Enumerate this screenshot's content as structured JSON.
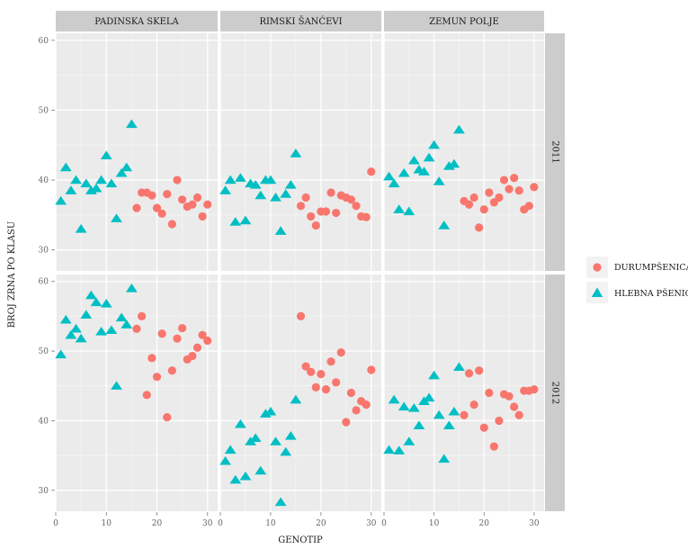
{
  "chart_data": {
    "type": "scatter",
    "facet_cols": [
      "PADINSKA SKELA",
      "RIMSKI ŠANĆEVI",
      "ZEMUN POLJE"
    ],
    "facet_rows": [
      "2011",
      "2012"
    ],
    "xlabel": "GENOTIP",
    "ylabel": "BROJ ZRNA PO KLASU",
    "xlim": [
      0,
      32
    ],
    "ylim": [
      27,
      61
    ],
    "xticks": [
      0,
      10,
      20,
      30
    ],
    "yticks": [
      30,
      40,
      50,
      60
    ],
    "grid": true,
    "legend_position": "right",
    "series": [
      {
        "name": "DURUMPŠENICA",
        "shape": "circle",
        "color": "#F8766D"
      },
      {
        "name": "HLEBNA PŠENICA",
        "shape": "triangle",
        "color": "#00BFC4"
      }
    ],
    "panels": [
      {
        "col": "PADINSKA SKELA",
        "row": "2011",
        "HLEBNA PŠENICA": [
          [
            1,
            37
          ],
          [
            2,
            41.8
          ],
          [
            3,
            38.5
          ],
          [
            4,
            40
          ],
          [
            5,
            33
          ],
          [
            6,
            39.5
          ],
          [
            7,
            38.5
          ],
          [
            8,
            38.8
          ],
          [
            9,
            40
          ],
          [
            10,
            43.5
          ],
          [
            11,
            39.5
          ],
          [
            12,
            34.5
          ],
          [
            13,
            41
          ],
          [
            14,
            41.8
          ],
          [
            15,
            48
          ]
        ],
        "DURUMPŠENICA": [
          [
            16,
            36
          ],
          [
            17,
            38.2
          ],
          [
            18,
            38.2
          ],
          [
            19,
            37.8
          ],
          [
            20,
            36
          ],
          [
            21,
            35.2
          ],
          [
            22,
            38
          ],
          [
            23,
            33.7
          ],
          [
            24,
            40
          ],
          [
            25,
            37.2
          ],
          [
            26,
            36.2
          ],
          [
            27,
            36.5
          ],
          [
            28,
            37.5
          ],
          [
            29,
            34.8
          ],
          [
            30,
            36.5
          ]
        ]
      },
      {
        "col": "RIMSKI ŠANĆEVI",
        "row": "2011",
        "HLEBNA PŠENICA": [
          [
            1,
            38.5
          ],
          [
            2,
            40
          ],
          [
            3,
            34
          ],
          [
            4,
            40.3
          ],
          [
            5,
            34.2
          ],
          [
            6,
            39.5
          ],
          [
            7,
            39.3
          ],
          [
            8,
            37.8
          ],
          [
            9,
            40
          ],
          [
            10,
            40
          ],
          [
            11,
            37.5
          ],
          [
            12,
            32.7
          ],
          [
            13,
            38
          ],
          [
            14,
            39.3
          ],
          [
            15,
            43.8
          ]
        ],
        "DURUMPŠENICA": [
          [
            16,
            36.3
          ],
          [
            17,
            37.5
          ],
          [
            18,
            34.8
          ],
          [
            19,
            33.5
          ],
          [
            20,
            35.5
          ],
          [
            21,
            35.5
          ],
          [
            22,
            38.2
          ],
          [
            23,
            35.3
          ],
          [
            24,
            37.8
          ],
          [
            25,
            37.5
          ],
          [
            26,
            37.2
          ],
          [
            27,
            36.3
          ],
          [
            28,
            34.8
          ],
          [
            29,
            34.7
          ],
          [
            30,
            41.2
          ]
        ]
      },
      {
        "col": "ZEMUN POLJE",
        "row": "2011",
        "HLEBNA PŠENICA": [
          [
            1,
            40.5
          ],
          [
            2,
            39.5
          ],
          [
            3,
            35.8
          ],
          [
            4,
            41
          ],
          [
            5,
            35.5
          ],
          [
            6,
            42.8
          ],
          [
            7,
            41.5
          ],
          [
            8,
            41.2
          ],
          [
            9,
            43.2
          ],
          [
            10,
            45
          ],
          [
            11,
            39.8
          ],
          [
            12,
            33.5
          ],
          [
            13,
            42
          ],
          [
            14,
            42.3
          ],
          [
            15,
            47.2
          ]
        ],
        "DURUMPŠENICA": [
          [
            16,
            37
          ],
          [
            17,
            36.5
          ],
          [
            18,
            37.5
          ],
          [
            19,
            33.2
          ],
          [
            20,
            35.8
          ],
          [
            21,
            38.2
          ],
          [
            22,
            36.8
          ],
          [
            23,
            37.5
          ],
          [
            24,
            40
          ],
          [
            25,
            38.7
          ],
          [
            26,
            40.3
          ],
          [
            27,
            38.5
          ],
          [
            28,
            35.8
          ],
          [
            29,
            36.3
          ],
          [
            30,
            39
          ]
        ]
      },
      {
        "col": "PADINSKA SKELA",
        "row": "2012",
        "HLEBNA PŠENICA": [
          [
            1,
            49.5
          ],
          [
            2,
            54.5
          ],
          [
            3,
            52.3
          ],
          [
            4,
            53.2
          ],
          [
            5,
            51.8
          ],
          [
            6,
            55.2
          ],
          [
            7,
            58
          ],
          [
            8,
            57
          ],
          [
            9,
            52.8
          ],
          [
            10,
            56.8
          ],
          [
            11,
            53
          ],
          [
            12,
            45
          ],
          [
            13,
            54.8
          ],
          [
            14,
            53.8
          ],
          [
            15,
            59
          ]
        ],
        "DURUMPŠENICA": [
          [
            16,
            53.2
          ],
          [
            17,
            55
          ],
          [
            18,
            43.7
          ],
          [
            19,
            49
          ],
          [
            20,
            46.3
          ],
          [
            21,
            52.5
          ],
          [
            22,
            40.5
          ],
          [
            23,
            47.2
          ],
          [
            24,
            51.8
          ],
          [
            25,
            53.3
          ],
          [
            26,
            48.8
          ],
          [
            27,
            49.3
          ],
          [
            28,
            50.5
          ],
          [
            29,
            52.3
          ],
          [
            30,
            51.5
          ]
        ]
      },
      {
        "col": "RIMSKI ŠANĆEVI",
        "row": "2012",
        "HLEBNA PŠENICA": [
          [
            1,
            34.2
          ],
          [
            2,
            35.8
          ],
          [
            3,
            31.5
          ],
          [
            4,
            39.5
          ],
          [
            5,
            32
          ],
          [
            6,
            37
          ],
          [
            7,
            37.5
          ],
          [
            8,
            32.8
          ],
          [
            9,
            41
          ],
          [
            10,
            41.3
          ],
          [
            11,
            37
          ],
          [
            12,
            28.3
          ],
          [
            13,
            35.5
          ],
          [
            14,
            37.8
          ],
          [
            15,
            43
          ]
        ],
        "DURUMPŠENICA": [
          [
            16,
            55
          ],
          [
            17,
            47.8
          ],
          [
            18,
            47
          ],
          [
            19,
            44.8
          ],
          [
            20,
            46.7
          ],
          [
            21,
            44.5
          ],
          [
            22,
            48.5
          ],
          [
            23,
            45.5
          ],
          [
            24,
            49.8
          ],
          [
            25,
            39.8
          ],
          [
            26,
            44
          ],
          [
            27,
            41.5
          ],
          [
            28,
            42.8
          ],
          [
            29,
            42.3
          ],
          [
            30,
            47.3
          ]
        ]
      },
      {
        "col": "ZEMUN POLJE",
        "row": "2012",
        "HLEBNA PŠENICA": [
          [
            1,
            35.8
          ],
          [
            2,
            43
          ],
          [
            3,
            35.7
          ],
          [
            4,
            42
          ],
          [
            5,
            37
          ],
          [
            6,
            41.8
          ],
          [
            7,
            39.3
          ],
          [
            8,
            42.8
          ],
          [
            9,
            43.3
          ],
          [
            10,
            46.5
          ],
          [
            11,
            40.8
          ],
          [
            12,
            34.5
          ],
          [
            13,
            39.3
          ],
          [
            14,
            41.3
          ],
          [
            15,
            47.7
          ]
        ],
        "DURUMPŠENICA": [
          [
            16,
            40.8
          ],
          [
            17,
            46.8
          ],
          [
            18,
            42.3
          ],
          [
            19,
            47.2
          ],
          [
            20,
            39
          ],
          [
            21,
            44
          ],
          [
            22,
            36.3
          ],
          [
            23,
            40
          ],
          [
            24,
            43.8
          ],
          [
            25,
            43.5
          ],
          [
            26,
            42
          ],
          [
            27,
            40.8
          ],
          [
            28,
            44.3
          ],
          [
            29,
            44.3
          ],
          [
            30,
            44.5
          ]
        ]
      }
    ]
  },
  "colors": {
    "panel_background": "#ebebeb",
    "strip_background": "#cccccc",
    "grid_major": "#ffffff",
    "grid_minor": "#f5f5f5"
  }
}
